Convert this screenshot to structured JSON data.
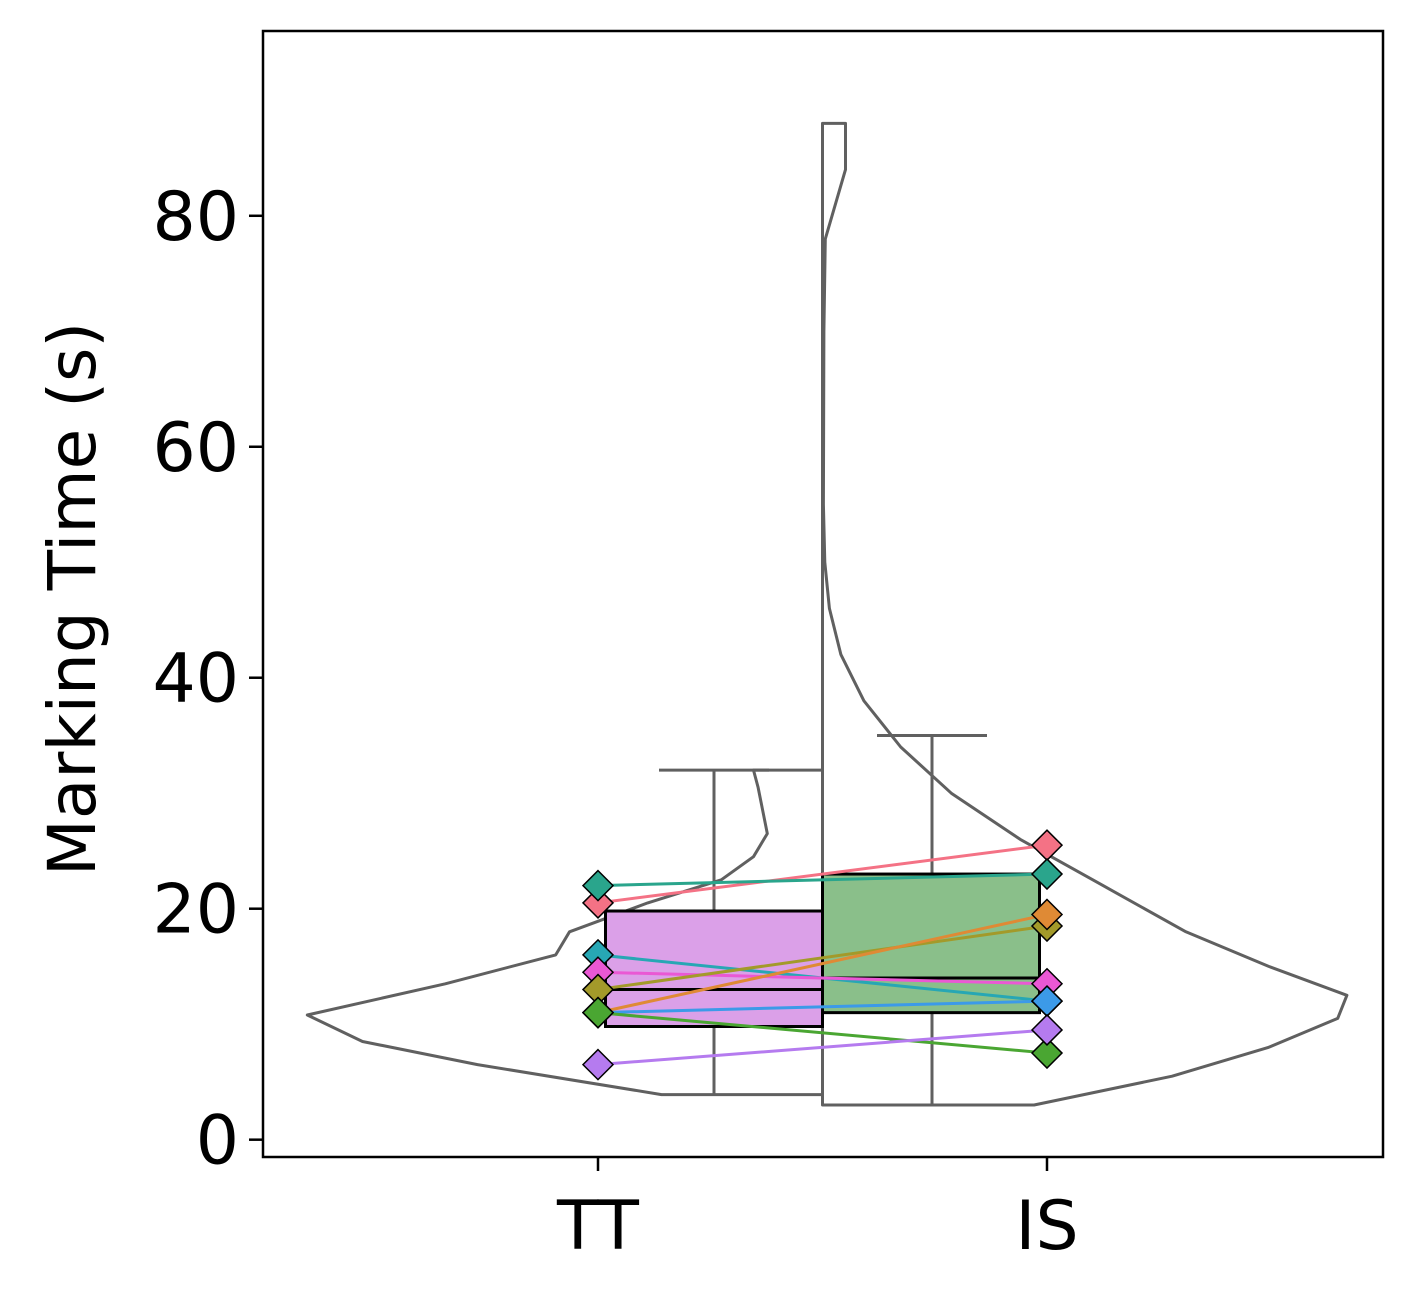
{
  "chart_data": {
    "type": "violin-box-paired",
    "title": "",
    "xlabel": "",
    "ylabel": "Marking Time (s)",
    "categories": [
      "TT",
      "IS"
    ],
    "ylim": [
      -1.5,
      96
    ],
    "yticks": [
      0,
      20,
      40,
      60,
      80
    ],
    "grid": false,
    "legend": "none",
    "split_violin": {
      "TT": {
        "side": "left",
        "range": [
          3.9,
          32.0
        ],
        "density_profile": [
          {
            "y": 3.9,
            "w": 0.35
          },
          {
            "y": 6.5,
            "w": 0.75
          },
          {
            "y": 8.5,
            "w": 1.0
          },
          {
            "y": 10.8,
            "w": 1.12
          },
          {
            "y": 13.5,
            "w": 0.82
          },
          {
            "y": 16.0,
            "w": 0.58
          },
          {
            "y": 18.0,
            "w": 0.55
          },
          {
            "y": 20.5,
            "w": 0.38
          },
          {
            "y": 22.5,
            "w": 0.22
          },
          {
            "y": 24.5,
            "w": 0.15
          },
          {
            "y": 26.5,
            "w": 0.12
          },
          {
            "y": 28.5,
            "w": 0.13
          },
          {
            "y": 30.5,
            "w": 0.14
          },
          {
            "y": 32.0,
            "w": 0.15
          }
        ]
      },
      "IS": {
        "side": "right",
        "range": [
          3.0,
          88.0
        ],
        "density_profile": [
          {
            "y": 3.0,
            "w": 0.46
          },
          {
            "y": 5.5,
            "w": 0.76
          },
          {
            "y": 8.0,
            "w": 0.97
          },
          {
            "y": 10.5,
            "w": 1.12
          },
          {
            "y": 12.5,
            "w": 1.14
          },
          {
            "y": 15.0,
            "w": 0.97
          },
          {
            "y": 18.0,
            "w": 0.79
          },
          {
            "y": 22.0,
            "w": 0.61
          },
          {
            "y": 26.0,
            "w": 0.43
          },
          {
            "y": 30.0,
            "w": 0.28
          },
          {
            "y": 34.0,
            "w": 0.17
          },
          {
            "y": 38.0,
            "w": 0.09
          },
          {
            "y": 42.0,
            "w": 0.04
          },
          {
            "y": 46.0,
            "w": 0.015
          },
          {
            "y": 50.0,
            "w": 0.005
          },
          {
            "y": 55.0,
            "w": 0.002
          },
          {
            "y": 70.0,
            "w": 0.003
          },
          {
            "y": 78.0,
            "w": 0.006
          },
          {
            "y": 84.0,
            "w": 0.05
          },
          {
            "y": 88.0,
            "w": 0.05
          }
        ]
      }
    },
    "boxes": [
      {
        "category": "TT",
        "q1": 9.8,
        "median": 13.0,
        "q3": 19.8,
        "whisker_low": 3.9,
        "whisker_high": 32.0,
        "color": "#dba0e8"
      },
      {
        "category": "IS",
        "q1": 11.0,
        "median": 14.0,
        "q3": 23.0,
        "whisker_low": 3.0,
        "whisker_high": 35.0,
        "color": "#8abf8a"
      }
    ],
    "paired_series": [
      {
        "color": "#f47285",
        "values": [
          20.5,
          25.5
        ]
      },
      {
        "color": "#2aa58c",
        "values": [
          22.0,
          23.0
        ]
      },
      {
        "color": "#27a7b4",
        "values": [
          16.0,
          12.0
        ]
      },
      {
        "color": "#ea58d4",
        "values": [
          14.5,
          13.5
        ]
      },
      {
        "color": "#a39a2a",
        "values": [
          13.0,
          18.5
        ]
      },
      {
        "color": "#df8a35",
        "values": [
          11.0,
          19.5
        ]
      },
      {
        "color": "#3c9ae8",
        "values": [
          11.0,
          12.0
        ]
      },
      {
        "color": "#4aa632",
        "values": [
          11.0,
          7.5
        ]
      },
      {
        "color": "#b57bef",
        "values": [
          6.5,
          9.5
        ]
      }
    ]
  }
}
